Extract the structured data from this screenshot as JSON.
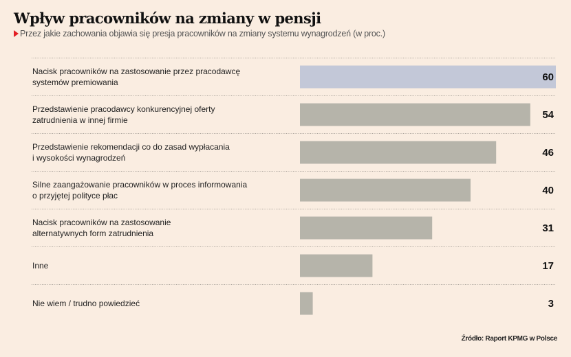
{
  "chart_data": {
    "type": "bar",
    "orientation": "horizontal",
    "title": "Wpływ pracowników na zmiany w pensji",
    "subtitle": "Przez jakie zachowania objawia się presja pracowników na zmiany systemu wynagrodzeń (w proc.)",
    "categories": [
      [
        "Nacisk pracowników na zastosowanie przez pracodawcę",
        "systemów premiowania"
      ],
      [
        "Przedstawienie pracodawcy konkurencyjnej oferty",
        "zatrudnienia w innej firmie"
      ],
      [
        "Przedstawienie rekomendacji co do zasad wypłacania",
        "i wysokości wynagrodzeń"
      ],
      [
        "Silne zaangażowanie pracowników w proces informowania",
        "o przyjętej polityce płac"
      ],
      [
        "Nacisk pracowników na zastosowanie",
        "alternatywnych form zatrudnienia"
      ],
      [
        "Inne"
      ],
      [
        "Nie wiem / trudno powiedzieć"
      ]
    ],
    "values": [
      60,
      54,
      46,
      40,
      31,
      17,
      3
    ],
    "highlight_index": 0,
    "colors": {
      "highlight": "#c3c8d8",
      "default": "#b6b4aa",
      "background": "#faede1",
      "accent": "#e31e24"
    },
    "xlim": [
      0,
      60
    ],
    "source": "Źródło: Raport KPMG w Polsce"
  }
}
